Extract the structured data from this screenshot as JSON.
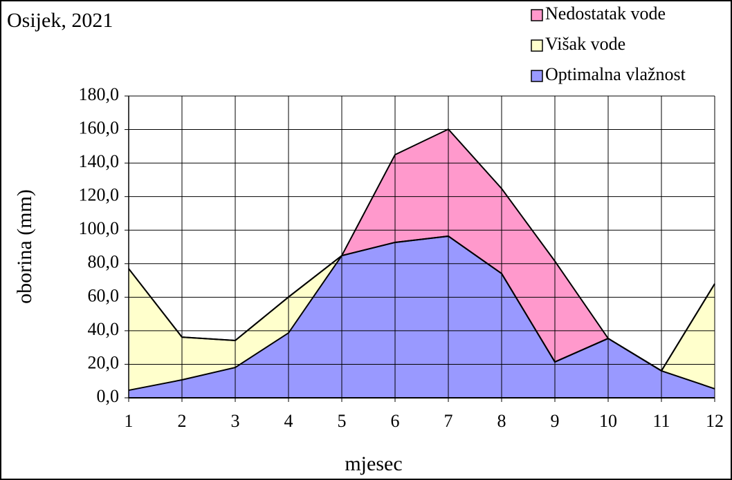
{
  "chart_data": {
    "type": "stacked-area",
    "title": "Osijek, 2021",
    "x_label": "mjesec",
    "y_label": "oborina (mm)",
    "x": [
      1,
      2,
      3,
      4,
      5,
      6,
      7,
      8,
      9,
      10,
      11,
      12
    ],
    "xlim": [
      1,
      12
    ],
    "xticks": [
      1,
      2,
      3,
      4,
      5,
      6,
      7,
      8,
      9,
      10,
      11,
      12
    ],
    "ylim": [
      0,
      180
    ],
    "yticks": [
      {
        "value": 0,
        "label": "0,0"
      },
      {
        "value": 20,
        "label": "20,0"
      },
      {
        "value": 40,
        "label": "40,0"
      },
      {
        "value": 60,
        "label": "60,0"
      },
      {
        "value": 80,
        "label": "80,0"
      },
      {
        "value": 100,
        "label": "100,0"
      },
      {
        "value": 120,
        "label": "120,0"
      },
      {
        "value": 140,
        "label": "140,0"
      },
      {
        "value": 160,
        "label": "160,0"
      },
      {
        "value": 180,
        "label": "180,0"
      }
    ],
    "grid": true,
    "legend": "top-right",
    "series": [
      {
        "name": "Optimalna vlažnost",
        "color": "#9999ff",
        "values": [
          4.5,
          10.7,
          18.1,
          38.7,
          84.8,
          92.7,
          96.4,
          74.1,
          21.4,
          35.4,
          16.1,
          5.4
        ]
      },
      {
        "name": "Višak vode",
        "color": "#ffffcc",
        "values": [
          72.5,
          25.5,
          16.1,
          21.4,
          0,
          0,
          0,
          0,
          0,
          0,
          0,
          62.6
        ]
      },
      {
        "name": "Nedostatak vode",
        "color": "#ff99cc",
        "values": [
          0,
          0,
          0,
          0,
          0,
          52.3,
          63.8,
          50.7,
          60.1,
          0,
          0,
          0
        ]
      }
    ]
  }
}
